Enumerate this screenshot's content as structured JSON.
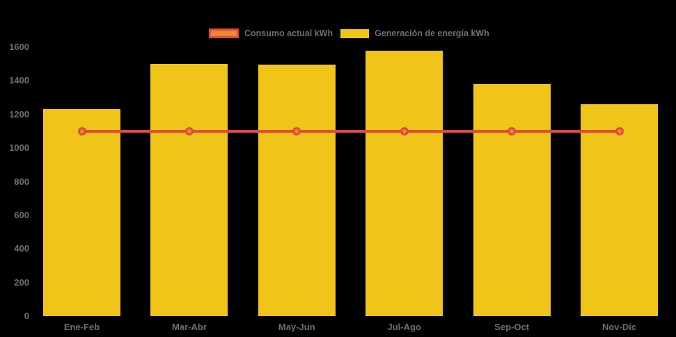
{
  "chart_data": {
    "type": "bar",
    "title": "",
    "categories": [
      "Ene-Feb",
      "Mar-Abr",
      "May-Jun",
      "Jul-Ago",
      "Sep-Oct",
      "Nov-Dic"
    ],
    "series": [
      {
        "name": "Consumo actual kWh",
        "type": "line",
        "values": [
          1100,
          1100,
          1100,
          1100,
          1100,
          1100
        ],
        "color": "#df4b3c",
        "marker_color": "#ed8733"
      },
      {
        "name": "Generación de energía kWh",
        "type": "bar",
        "values": [
          1230,
          1500,
          1495,
          1580,
          1380,
          1260
        ],
        "color": "#f0c419"
      }
    ],
    "xlabel": "",
    "ylabel": "",
    "ylim": [
      0,
      1600
    ],
    "yticks": [
      0,
      200,
      400,
      600,
      800,
      1000,
      1200,
      1400,
      1600
    ],
    "grid": false,
    "legend_position": "top-center"
  },
  "colors": {
    "background": "#000000",
    "text": "#6f6f6f",
    "bar_fill": "#f0c419",
    "line_stroke": "#df4b3c",
    "marker_fill": "#ed8733"
  }
}
